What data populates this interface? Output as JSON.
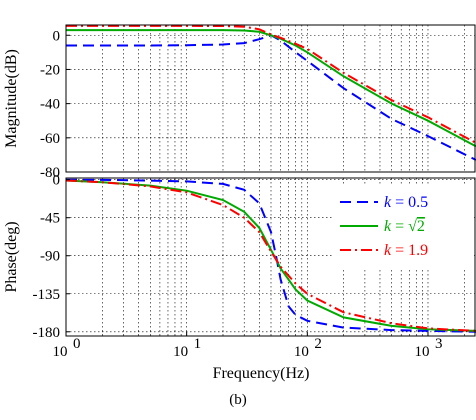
{
  "caption": "(b)",
  "chart_data": [
    {
      "type": "line",
      "panel": "magnitude",
      "xlabel": "",
      "ylabel": "Magnitude(dB)",
      "xscale": "log",
      "xlim": [
        1,
        2500
      ],
      "ylim": [
        -80,
        6
      ],
      "yticks": [
        0,
        -20,
        -40,
        -60,
        -80
      ],
      "grid": true,
      "series": [
        {
          "name": "k = 0.5",
          "color": "#0000ff",
          "style": "dashed",
          "x": [
            1,
            5,
            10,
            20,
            30,
            40,
            50,
            60,
            80,
            100,
            200,
            500,
            1000,
            2500
          ],
          "y": [
            -6,
            -6,
            -5.8,
            -5.4,
            -4.6,
            -2.3,
            0,
            -3,
            -10,
            -15,
            -31,
            -49,
            -59,
            -73
          ]
        },
        {
          "name": "k = √2",
          "color": "#00aa00",
          "style": "solid",
          "x": [
            1,
            5,
            10,
            20,
            30,
            40,
            50,
            60,
            80,
            100,
            200,
            500,
            1000,
            2500
          ],
          "y": [
            3,
            3,
            3,
            3,
            2.8,
            2,
            0,
            -2,
            -6,
            -10,
            -24,
            -40,
            -50,
            -65
          ]
        },
        {
          "name": "k = 1.9",
          "color": "#ff0000",
          "style": "dashdot",
          "x": [
            1,
            5,
            10,
            20,
            30,
            40,
            50,
            60,
            80,
            100,
            200,
            500,
            1000,
            2500
          ],
          "y": [
            5.5,
            5.5,
            5.5,
            5.4,
            5,
            3.5,
            0.5,
            -1.5,
            -5,
            -8,
            -22,
            -38,
            -48,
            -63
          ]
        }
      ]
    },
    {
      "type": "line",
      "panel": "phase",
      "xlabel": "Frequency(Hz)",
      "ylabel": "Phase(deg)",
      "xscale": "log",
      "xlim": [
        1,
        2500
      ],
      "xticks": [
        1,
        10,
        100,
        1000
      ],
      "xtick_labels": [
        {
          "base": "10",
          "exp": "0"
        },
        {
          "base": "10",
          "exp": "1"
        },
        {
          "base": "10",
          "exp": "2"
        },
        {
          "base": "10",
          "exp": "3"
        }
      ],
      "ylim": [
        -185,
        2
      ],
      "yticks": [
        0,
        -45,
        -90,
        -135,
        -180
      ],
      "grid": true,
      "legend": "top-right",
      "series": [
        {
          "name": "k = 0.5",
          "label": {
            "pre": "k",
            "post": " = 0.5",
            "sqrt": ""
          },
          "color": "#0000ff",
          "style": "dashed",
          "x": [
            1,
            3,
            10,
            20,
            30,
            40,
            50,
            55,
            60,
            70,
            80,
            100,
            200,
            500,
            1000,
            2500
          ],
          "y": [
            0,
            -0.5,
            -2,
            -5,
            -12,
            -28,
            -62,
            -90,
            -118,
            -150,
            -160,
            -167,
            -175,
            -178,
            -179,
            -180
          ]
        },
        {
          "name": "k = √2",
          "label": {
            "pre": "k",
            "post": " = ",
            "sqrt": "2"
          },
          "color": "#00aa00",
          "style": "solid",
          "x": [
            1,
            2,
            5,
            10,
            20,
            30,
            40,
            50,
            60,
            80,
            100,
            200,
            500,
            1000,
            2500
          ],
          "y": [
            -1,
            -3,
            -7,
            -13,
            -24,
            -38,
            -57,
            -83,
            -105,
            -130,
            -143,
            -163,
            -173,
            -177,
            -179
          ]
        },
        {
          "name": "k = 1.9",
          "label": {
            "pre": "k",
            "post": " = 1.9",
            "sqrt": ""
          },
          "color": "#ff0000",
          "style": "dashdot",
          "x": [
            1,
            2,
            5,
            10,
            20,
            30,
            40,
            50,
            60,
            80,
            100,
            200,
            500,
            1000,
            2500
          ],
          "y": [
            -1,
            -3,
            -8,
            -15,
            -30,
            -45,
            -62,
            -85,
            -103,
            -123,
            -135,
            -157,
            -170,
            -176,
            -179
          ]
        }
      ]
    }
  ]
}
